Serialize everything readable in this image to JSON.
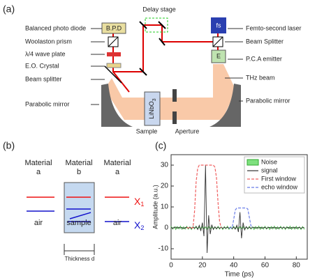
{
  "panel_a": {
    "label": "(a)",
    "delay_stage": "Delay stage",
    "bpd": "B.P.D",
    "fs": "fs",
    "e": "E",
    "left_labels": [
      "Balanced photo diode",
      "Woolaston prism",
      "λ/4 wave plate",
      "E.O. Crystal",
      "Beam splitter",
      "Parabolic mirror"
    ],
    "right_labels": [
      "Femto-second laser",
      "Beam Splitter",
      "P.C.A emitter",
      "THz beam",
      "Parabolic mirror"
    ],
    "sample": "Sample",
    "aperture": "Aperture",
    "crystal": "LiNbO",
    "crystal_sub": "3"
  },
  "panel_b": {
    "label": "(b)",
    "columns": [
      [
        "Material",
        "a"
      ],
      [
        "Material",
        "b"
      ],
      [
        "Material",
        "a"
      ]
    ],
    "bottom": [
      "air",
      "sample",
      "air"
    ],
    "outputs": [
      {
        "text": "X",
        "sub": "1"
      },
      {
        "text": "X",
        "sub": "2"
      }
    ],
    "thickness": "Thickness d"
  },
  "chart_data": {
    "type": "line",
    "label": "(c)",
    "xlabel": "Time (ps)",
    "ylabel": "Amplitude (a.u.)",
    "x": [
      0,
      1,
      2,
      3,
      4,
      5,
      6,
      7,
      8,
      9,
      10,
      11,
      12,
      13,
      14,
      15,
      16,
      17,
      18,
      19,
      20,
      21,
      22,
      23,
      24,
      25,
      26,
      27,
      28,
      29,
      30,
      31,
      32,
      33,
      34,
      35,
      36,
      37,
      38,
      39,
      40,
      41,
      42,
      43,
      44,
      45,
      46,
      47,
      48,
      49,
      50,
      51,
      52,
      53,
      54,
      55,
      56,
      57,
      58,
      59,
      60,
      61,
      62,
      63,
      64,
      65,
      66,
      67,
      68,
      69,
      70,
      71,
      72,
      73,
      74,
      75,
      76,
      77,
      78,
      79,
      80,
      81,
      82,
      83,
      84,
      85
    ],
    "xlim": [
      0,
      87
    ],
    "ylim": [
      -15,
      35
    ],
    "xticks": [
      0,
      20,
      40,
      60,
      80
    ],
    "yticks": [
      -10,
      0,
      10,
      20,
      30
    ],
    "legend": "upper right",
    "series": [
      {
        "name": "Noise",
        "color": "#7ee07e",
        "style": "area",
        "values": [
          0.8,
          -0.7,
          0.6,
          -0.9,
          0.7,
          -0.6,
          0.9,
          -0.8,
          0.6,
          -0.7,
          0.8,
          -0.7,
          0.6,
          -0.9,
          0.7,
          -0.6,
          0.9,
          -0.8,
          0.6,
          -0.7,
          0.8,
          -0.7,
          0.6,
          -0.9,
          0.7,
          -0.6,
          0.9,
          -0.8,
          0.6,
          -0.7,
          0.8,
          -0.7,
          0.6,
          -0.9,
          0.7,
          -0.6,
          0.9,
          -0.8,
          0.6,
          -0.7,
          0.8,
          -0.7,
          0.6,
          -0.9,
          0.7,
          -0.6,
          0.9,
          -0.8,
          0.6,
          -0.7,
          0.8,
          -0.7,
          0.6,
          -0.9,
          0.7,
          -0.6,
          0.9,
          -0.8,
          0.6,
          -0.7,
          0.8,
          -0.7,
          0.6,
          -0.9,
          0.7,
          -0.6,
          0.9,
          -0.8,
          0.6,
          -0.7,
          0.8,
          -0.7,
          0.6,
          -0.9,
          0.7,
          -0.6,
          0.9,
          -0.8,
          0.6,
          -0.7,
          0.8,
          -0.7,
          0.6,
          -0.9,
          0.7,
          -0.6
        ]
      },
      {
        "name": "signal",
        "color": "#333333",
        "style": "solid",
        "values": [
          0.2,
          -0.3,
          0.1,
          0.4,
          -0.2,
          0.3,
          -0.1,
          0.2,
          -0.4,
          0.1,
          0.3,
          -0.2,
          0.2,
          -0.3,
          0.4,
          -0.1,
          0.6,
          -0.8,
          1.2,
          -1.5,
          2.5,
          -4,
          30,
          -12,
          6,
          -3,
          1.5,
          -0.8,
          0.5,
          -0.4,
          0.3,
          -0.2,
          0.4,
          -0.3,
          0.2,
          -0.1,
          0.3,
          -0.2,
          0.2,
          -0.3,
          0.4,
          -0.6,
          1.2,
          -2,
          7.5,
          -5,
          2.5,
          -1,
          0.6,
          -0.3,
          0.3,
          -0.2,
          0.1,
          0.3,
          -0.2,
          0.2,
          -0.1,
          0.3,
          -0.2,
          0.1,
          0.2,
          -0.3,
          0.1,
          0.2,
          -0.2,
          0.3,
          -0.1,
          0.2,
          -0.3,
          0.1,
          0.2,
          -0.1,
          0.3,
          -0.2,
          0.1,
          0.2,
          -0.3,
          0.2,
          -0.1,
          0.3,
          -0.2,
          0.1,
          0.2,
          -0.3,
          0.1,
          0.2
        ]
      },
      {
        "name": "First window",
        "color": "#f06060",
        "style": "dashed",
        "values": [
          null,
          null,
          null,
          null,
          null,
          null,
          null,
          null,
          null,
          null,
          0,
          0,
          0,
          0,
          0,
          8,
          22,
          28.5,
          30,
          30,
          30,
          30,
          30,
          30,
          30,
          30,
          30,
          30,
          29,
          24,
          12,
          3,
          0,
          null,
          null,
          null,
          null,
          null,
          null,
          null,
          null,
          null,
          null,
          null,
          null,
          null,
          null,
          null,
          null,
          null,
          null,
          null,
          null,
          null,
          null,
          null,
          null,
          null,
          null,
          null,
          null,
          null,
          null,
          null,
          null,
          null,
          null,
          null,
          null,
          null,
          null,
          null,
          null,
          null,
          null,
          null,
          null,
          null,
          null,
          null,
          null,
          null,
          null,
          null,
          null,
          null
        ]
      },
      {
        "name": "echo window",
        "color": "#6a7ee8",
        "style": "dashed",
        "values": [
          null,
          null,
          null,
          null,
          null,
          null,
          null,
          null,
          null,
          null,
          null,
          null,
          null,
          null,
          null,
          null,
          null,
          null,
          null,
          null,
          null,
          null,
          null,
          null,
          null,
          null,
          null,
          null,
          null,
          null,
          null,
          null,
          null,
          null,
          null,
          null,
          null,
          0,
          0,
          0,
          4,
          8.5,
          9.5,
          9.5,
          9.5,
          9.5,
          9.5,
          9.5,
          9.5,
          9,
          5,
          1,
          0,
          null,
          null,
          null,
          null,
          null,
          null,
          null,
          null,
          null,
          null,
          null,
          null,
          null,
          null,
          null,
          null,
          null,
          null,
          null,
          null,
          null,
          null,
          null,
          null,
          null,
          null,
          null,
          null,
          null,
          null,
          null,
          null,
          null
        ]
      }
    ]
  }
}
